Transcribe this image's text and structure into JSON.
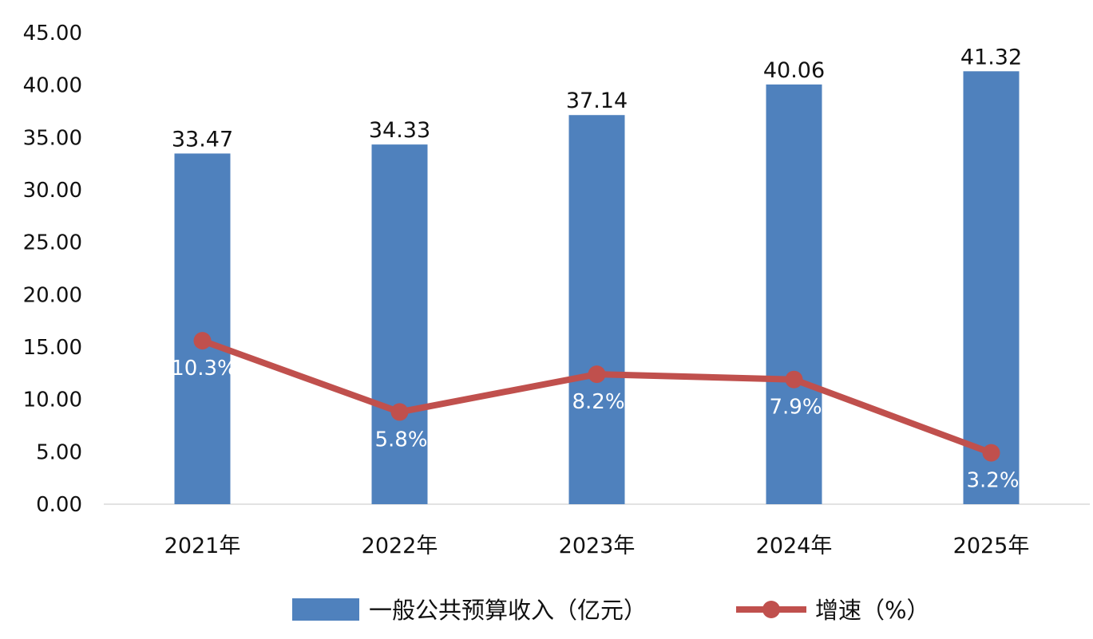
{
  "chart_data": {
    "type": "bar",
    "categories": [
      "2021年",
      "2022年",
      "2023年",
      "2024年",
      "2025年"
    ],
    "y_ticks": [
      "0.00",
      "5.00",
      "10.00",
      "15.00",
      "20.00",
      "25.00",
      "30.00",
      "35.00",
      "40.00",
      "45.00"
    ],
    "ylim": [
      0,
      45
    ],
    "grid": false,
    "legend_position": "bottom",
    "series": [
      {
        "name": "一般公共预算收入（亿元）",
        "type": "bar",
        "color": "#4f81bd",
        "values": [
          33.47,
          34.33,
          37.14,
          40.06,
          41.32
        ],
        "labels": [
          "33.47",
          "34.33",
          "37.14",
          "40.06",
          "41.32"
        ]
      },
      {
        "name": "增速（%）",
        "type": "line",
        "color": "#c0504d",
        "values": [
          15.6,
          8.8,
          12.4,
          11.9,
          4.9
        ],
        "labels": [
          "10.3%",
          "5.8%",
          "8.2%",
          "7.9%",
          "3.2%"
        ]
      }
    ]
  }
}
